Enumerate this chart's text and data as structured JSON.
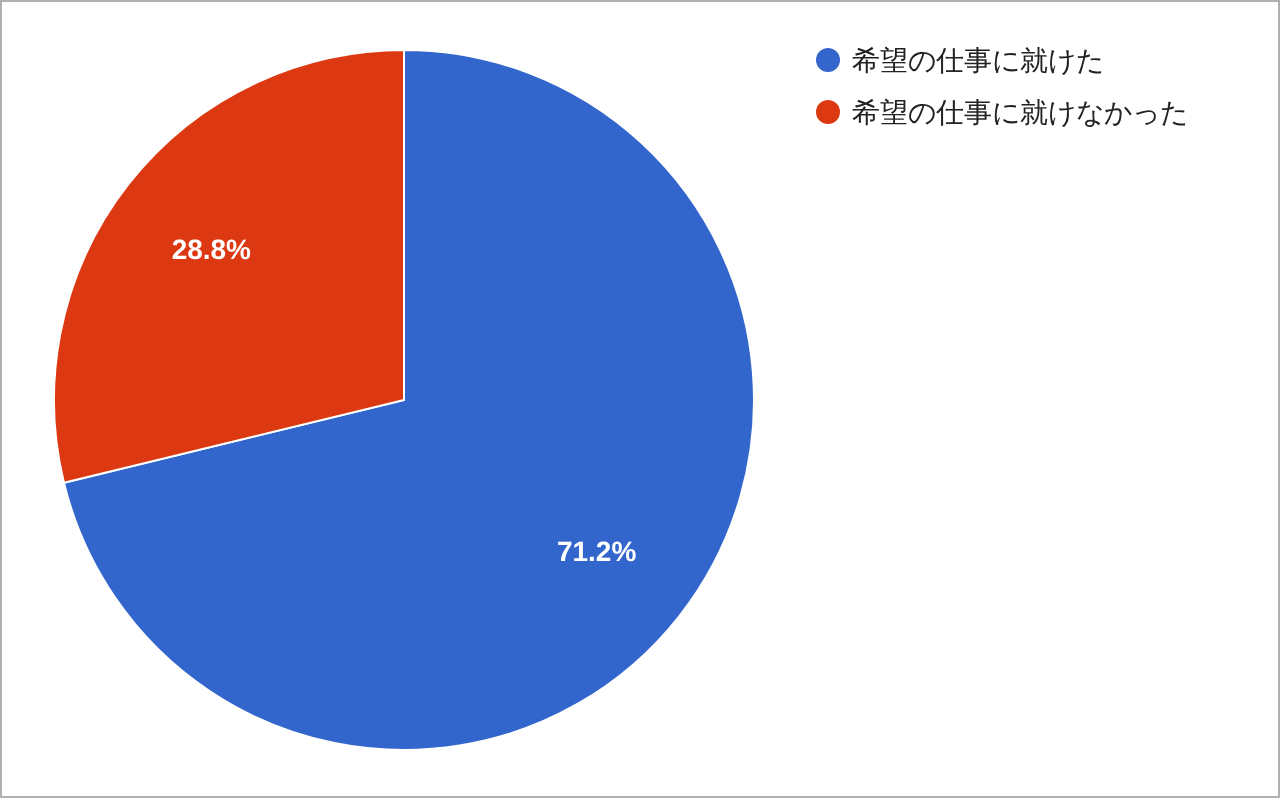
{
  "chart_data": {
    "type": "pie",
    "categories": [
      "希望の仕事に就けた",
      "希望の仕事に就けなかった"
    ],
    "values": [
      71.2,
      28.8
    ],
    "colors": [
      "#3366cc",
      "#dc3912"
    ],
    "value_labels": [
      "71.2%",
      "28.8%"
    ],
    "legend": "top right"
  }
}
